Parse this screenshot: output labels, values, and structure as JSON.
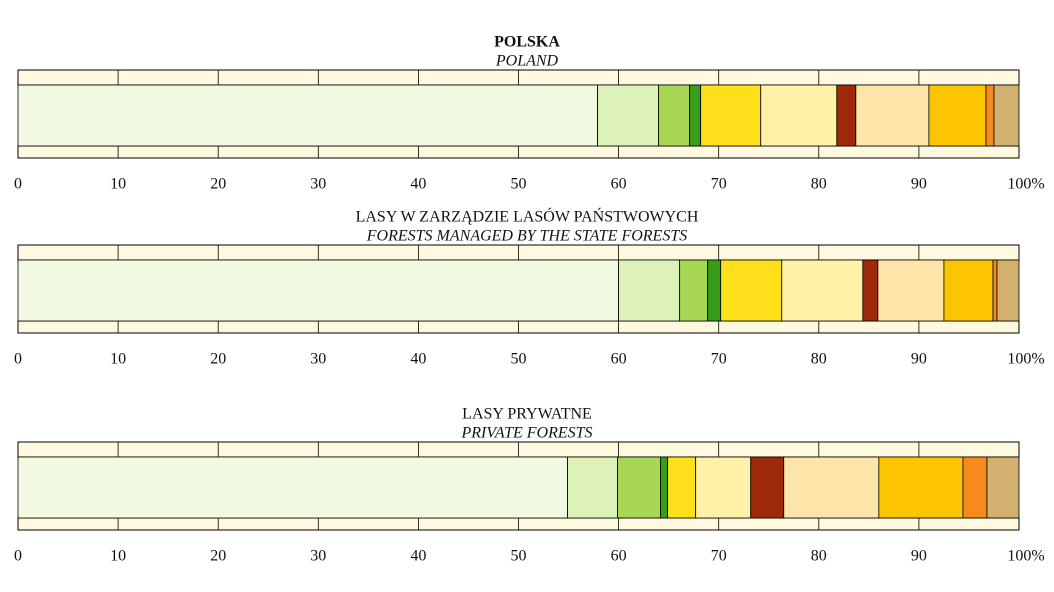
{
  "chart_data": [
    {
      "type": "stacked_bar",
      "title": "POLSKA",
      "subtitle": "POLAND",
      "title_bold": true,
      "values": [
        57.9,
        6.1,
        3.1,
        1.1,
        6.0,
        7.6,
        1.9,
        7.3,
        5.7,
        0.8,
        2.5
      ],
      "colors": [
        "#f2f9e1",
        "#dcf2b9",
        "#a6d854",
        "#3a9c1c",
        "#fde019",
        "#fff1a8",
        "#9e2a0b",
        "#fde4a8",
        "#fdc500",
        "#f68a1f",
        "#d3b06f"
      ],
      "xlim": [
        0,
        100
      ],
      "xticks": [
        0,
        10,
        20,
        30,
        40,
        50,
        60,
        70,
        80,
        90,
        {
          "value": 100,
          "label": "100%"
        }
      ]
    },
    {
      "type": "stacked_bar",
      "title": "LASY W ZARZĄDZIE LASÓW PAŃSTWOWYCH",
      "subtitle": "FORESTS MANAGED BY THE STATE FORESTS",
      "title_bold": false,
      "values": [
        60.0,
        6.1,
        2.8,
        1.3,
        6.1,
        8.1,
        1.5,
        6.6,
        4.9,
        0.4,
        2.2
      ],
      "colors": [
        "#f2f9e1",
        "#dcf2b9",
        "#a6d854",
        "#3a9c1c",
        "#fde019",
        "#fff1a8",
        "#9e2a0b",
        "#fde4a8",
        "#fdc500",
        "#f68a1f",
        "#d3b06f"
      ],
      "xlim": [
        0,
        100
      ],
      "xticks": [
        0,
        10,
        20,
        30,
        40,
        50,
        60,
        70,
        80,
        90,
        {
          "value": 100,
          "label": "100%"
        }
      ]
    },
    {
      "type": "stacked_bar",
      "title": "LASY PRYWATNE",
      "subtitle": "PRIVATE FORESTS",
      "title_bold": false,
      "values": [
        54.9,
        5.0,
        4.3,
        0.7,
        2.8,
        5.5,
        3.3,
        9.5,
        8.4,
        2.4,
        3.2
      ],
      "colors": [
        "#f2f9e1",
        "#dcf2b9",
        "#a6d854",
        "#3a9c1c",
        "#fde019",
        "#fff1a8",
        "#9e2a0b",
        "#fde4a8",
        "#fdc500",
        "#f68a1f",
        "#d3b06f"
      ],
      "xlim": [
        0,
        100
      ],
      "xticks": [
        0,
        10,
        20,
        30,
        40,
        50,
        60,
        70,
        80,
        90,
        {
          "value": 100,
          "label": "100%"
        }
      ]
    }
  ]
}
